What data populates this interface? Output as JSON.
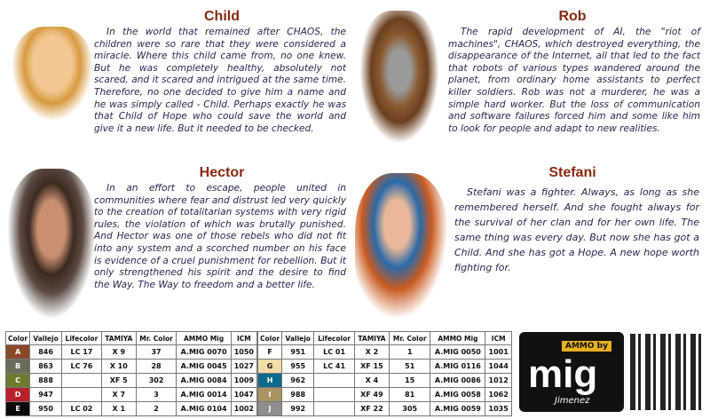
{
  "characters": [
    {
      "name": "Child",
      "bio": "In the world that remained after CHAOS, the children were so rare that they were considered a miracle. Where this child came from, no one knew. But he was completely healthy, absolutely not scared, and it scared and intrigued at the same time. Therefore, no one decided to give him a name and he was simply called - Child. Perhaps exactly he was that Child of Hope who could save the world and give it a new life. But it needed to be checked."
    },
    {
      "name": "Rob",
      "bio": "The rapid development of AI, the \"riot of machines\", CHAOS, which destroyed everything, the disappearance of the Internet, all that led to the fact that robots of various types wandered around the planet, from ordinary home assistants to perfect killer soldiers. Rob was not a murderer, he was a simple hard worker. But the loss of communication and software failures forced him and some like him to look for people and adapt to new realities."
    },
    {
      "name": "Hector",
      "bio": "In an effort to escape, people united in communities where fear and distrust led very quickly to the creation of totalitarian systems with very rigid rules, the violation of which was brutally punished. And Hector was one of those rebels who did not fit into any system and a scorched number on his face is evidence of a cruel punishment for rebellion. But it only strengthened his spirit and the desire to find the Way. The Way to freedom and a better life."
    },
    {
      "name": "Stefani",
      "bio": "Stefani was a fighter. Always, as long as she remembered herself. And she fought always for the survival of her clan and for her own life. The same thing was every day. But now she has got a Child. And she has got a Hope. A new hope worth fighting for."
    }
  ],
  "table": {
    "headers": [
      "Color",
      "Vallejo",
      "Lifecolor",
      "TAMIYA",
      "Mr. Color",
      "AMMO Mig",
      "ICM"
    ],
    "left": [
      {
        "code": "A",
        "color": "#8a4a2a",
        "vallejo": "846",
        "lifecolor": "LC 17",
        "tamiya": "X 9",
        "mrcolor": "37",
        "ammo": "A.MIG 0070",
        "icm": "1050"
      },
      {
        "code": "B",
        "color": "#6b6b5a",
        "vallejo": "863",
        "lifecolor": "LC 76",
        "tamiya": "X 10",
        "mrcolor": "28",
        "ammo": "A.MIG 0045",
        "icm": "1027"
      },
      {
        "code": "C",
        "color": "#6f7a2e",
        "vallejo": "888",
        "lifecolor": "",
        "tamiya": "XF 5",
        "mrcolor": "302",
        "ammo": "A.MIG 0084",
        "icm": "1009"
      },
      {
        "code": "D",
        "color": "#b8202a",
        "vallejo": "947",
        "lifecolor": "",
        "tamiya": "X 7",
        "mrcolor": "3",
        "ammo": "A.MIG 0014",
        "icm": "1047"
      },
      {
        "code": "E",
        "color": "#0a0a0a",
        "vallejo": "950",
        "lifecolor": "LC 02",
        "tamiya": "X 1",
        "mrcolor": "2",
        "ammo": "A.MIG 0104",
        "icm": "1002"
      }
    ],
    "right": [
      {
        "code": "F",
        "color": "#ffffff",
        "vallejo": "951",
        "lifecolor": "LC 01",
        "tamiya": "X 2",
        "mrcolor": "1",
        "ammo": "A.MIG 0050",
        "icm": "1001"
      },
      {
        "code": "G",
        "color": "#f3dca8",
        "vallejo": "955",
        "lifecolor": "LC 41",
        "tamiya": "XF 15",
        "mrcolor": "51",
        "ammo": "A.MIG 0116",
        "icm": "1044"
      },
      {
        "code": "H",
        "color": "#0d6a8a",
        "vallejo": "962",
        "lifecolor": "",
        "tamiya": "X 4",
        "mrcolor": "15",
        "ammo": "A.MIG 0086",
        "icm": "1012"
      },
      {
        "code": "I",
        "color": "#a89460",
        "vallejo": "988",
        "lifecolor": "",
        "tamiya": "XF 49",
        "mrcolor": "81",
        "ammo": "A.MIG 0058",
        "icm": "1062"
      },
      {
        "code": "J",
        "color": "#8e8e8e",
        "vallejo": "992",
        "lifecolor": "",
        "tamiya": "XF 22",
        "mrcolor": "305",
        "ammo": "A.MIG 0059",
        "icm": "1035"
      }
    ]
  },
  "logo": {
    "top": "AMMO by",
    "main": "mig",
    "bottom": "Jimenez"
  }
}
